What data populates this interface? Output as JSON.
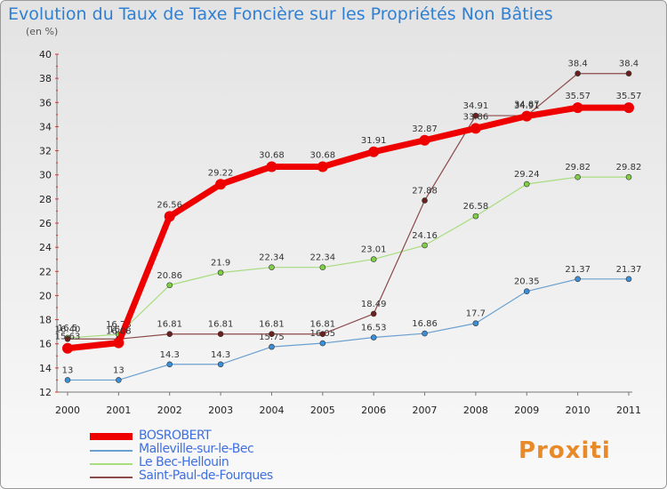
{
  "title": "Evolution du Taux de Taxe Foncière sur les Propriétés Non Bâties",
  "unit": "(en %)",
  "logo": "Proxiti",
  "chart_data": {
    "type": "line",
    "x": [
      "2000",
      "2001",
      "2002",
      "2003",
      "2004",
      "2005",
      "2006",
      "2007",
      "2008",
      "2009",
      "2010",
      "2011"
    ],
    "yticks": [
      12,
      14,
      16,
      18,
      20,
      22,
      24,
      26,
      28,
      30,
      32,
      34,
      36,
      38,
      40
    ],
    "ylim": [
      12,
      40
    ],
    "grid": false,
    "legend_position": "bottom-left",
    "series": [
      {
        "name": "Malleville-sur-le-Bec",
        "color": "#6aa0cf",
        "marker": "#3a8fd8",
        "width": 1.2,
        "values": [
          13,
          13,
          14.3,
          14.3,
          15.75,
          16.05,
          16.53,
          16.86,
          17.7,
          20.35,
          21.37,
          21.37
        ],
        "labels": [
          "13",
          "13",
          "14.3",
          "14.3",
          "15.75",
          "16.05",
          "16.53",
          "16.86",
          "17.7",
          "20.35",
          "21.37",
          "21.37"
        ]
      },
      {
        "name": "Le Bec-Hellouin",
        "color": "#a8dc7e",
        "marker": "#7fcf45",
        "width": 1.2,
        "values": [
          16.5,
          16.78,
          20.86,
          21.9,
          22.34,
          22.34,
          23.01,
          24.16,
          26.58,
          29.24,
          29.82,
          29.82
        ],
        "labels": [
          "16.5",
          "16.78",
          "20.86",
          "21.9",
          "22.34",
          "22.34",
          "23.01",
          "24.16",
          "26.58",
          "29.24",
          "29.82",
          "29.82"
        ]
      },
      {
        "name": "Saint-Paul-de-Fourques",
        "color": "#8a4a4a",
        "marker": "#6b1f1f",
        "width": 1.2,
        "values": [
          16.4,
          16.4,
          16.81,
          16.81,
          16.81,
          16.81,
          18.49,
          27.88,
          34.91,
          34.91,
          38.4,
          38.4
        ],
        "labels": [
          "16.40",
          "16.4",
          "16.81",
          "16.81",
          "16.81",
          "16.81",
          "18.49",
          "27.88",
          "34.91",
          "34.91",
          "38.4",
          "38.4"
        ]
      },
      {
        "name": "BOSROBERT",
        "color": "#ee0000",
        "marker": "#ee0000",
        "width": 7,
        "values": [
          15.63,
          16.08,
          26.56,
          29.22,
          30.68,
          30.68,
          31.91,
          32.87,
          33.86,
          34.87,
          35.57,
          35.57
        ],
        "labels": [
          "15.63",
          "16.08",
          "26.56",
          "29.22",
          "30.68",
          "30.68",
          "31.91",
          "32.87",
          "33.86",
          "34.87",
          "35.57",
          "35.57"
        ]
      }
    ],
    "legend": [
      "BOSROBERT",
      "Malleville-sur-le-Bec",
      "Le Bec-Hellouin",
      "Saint-Paul-de-Fourques"
    ]
  }
}
